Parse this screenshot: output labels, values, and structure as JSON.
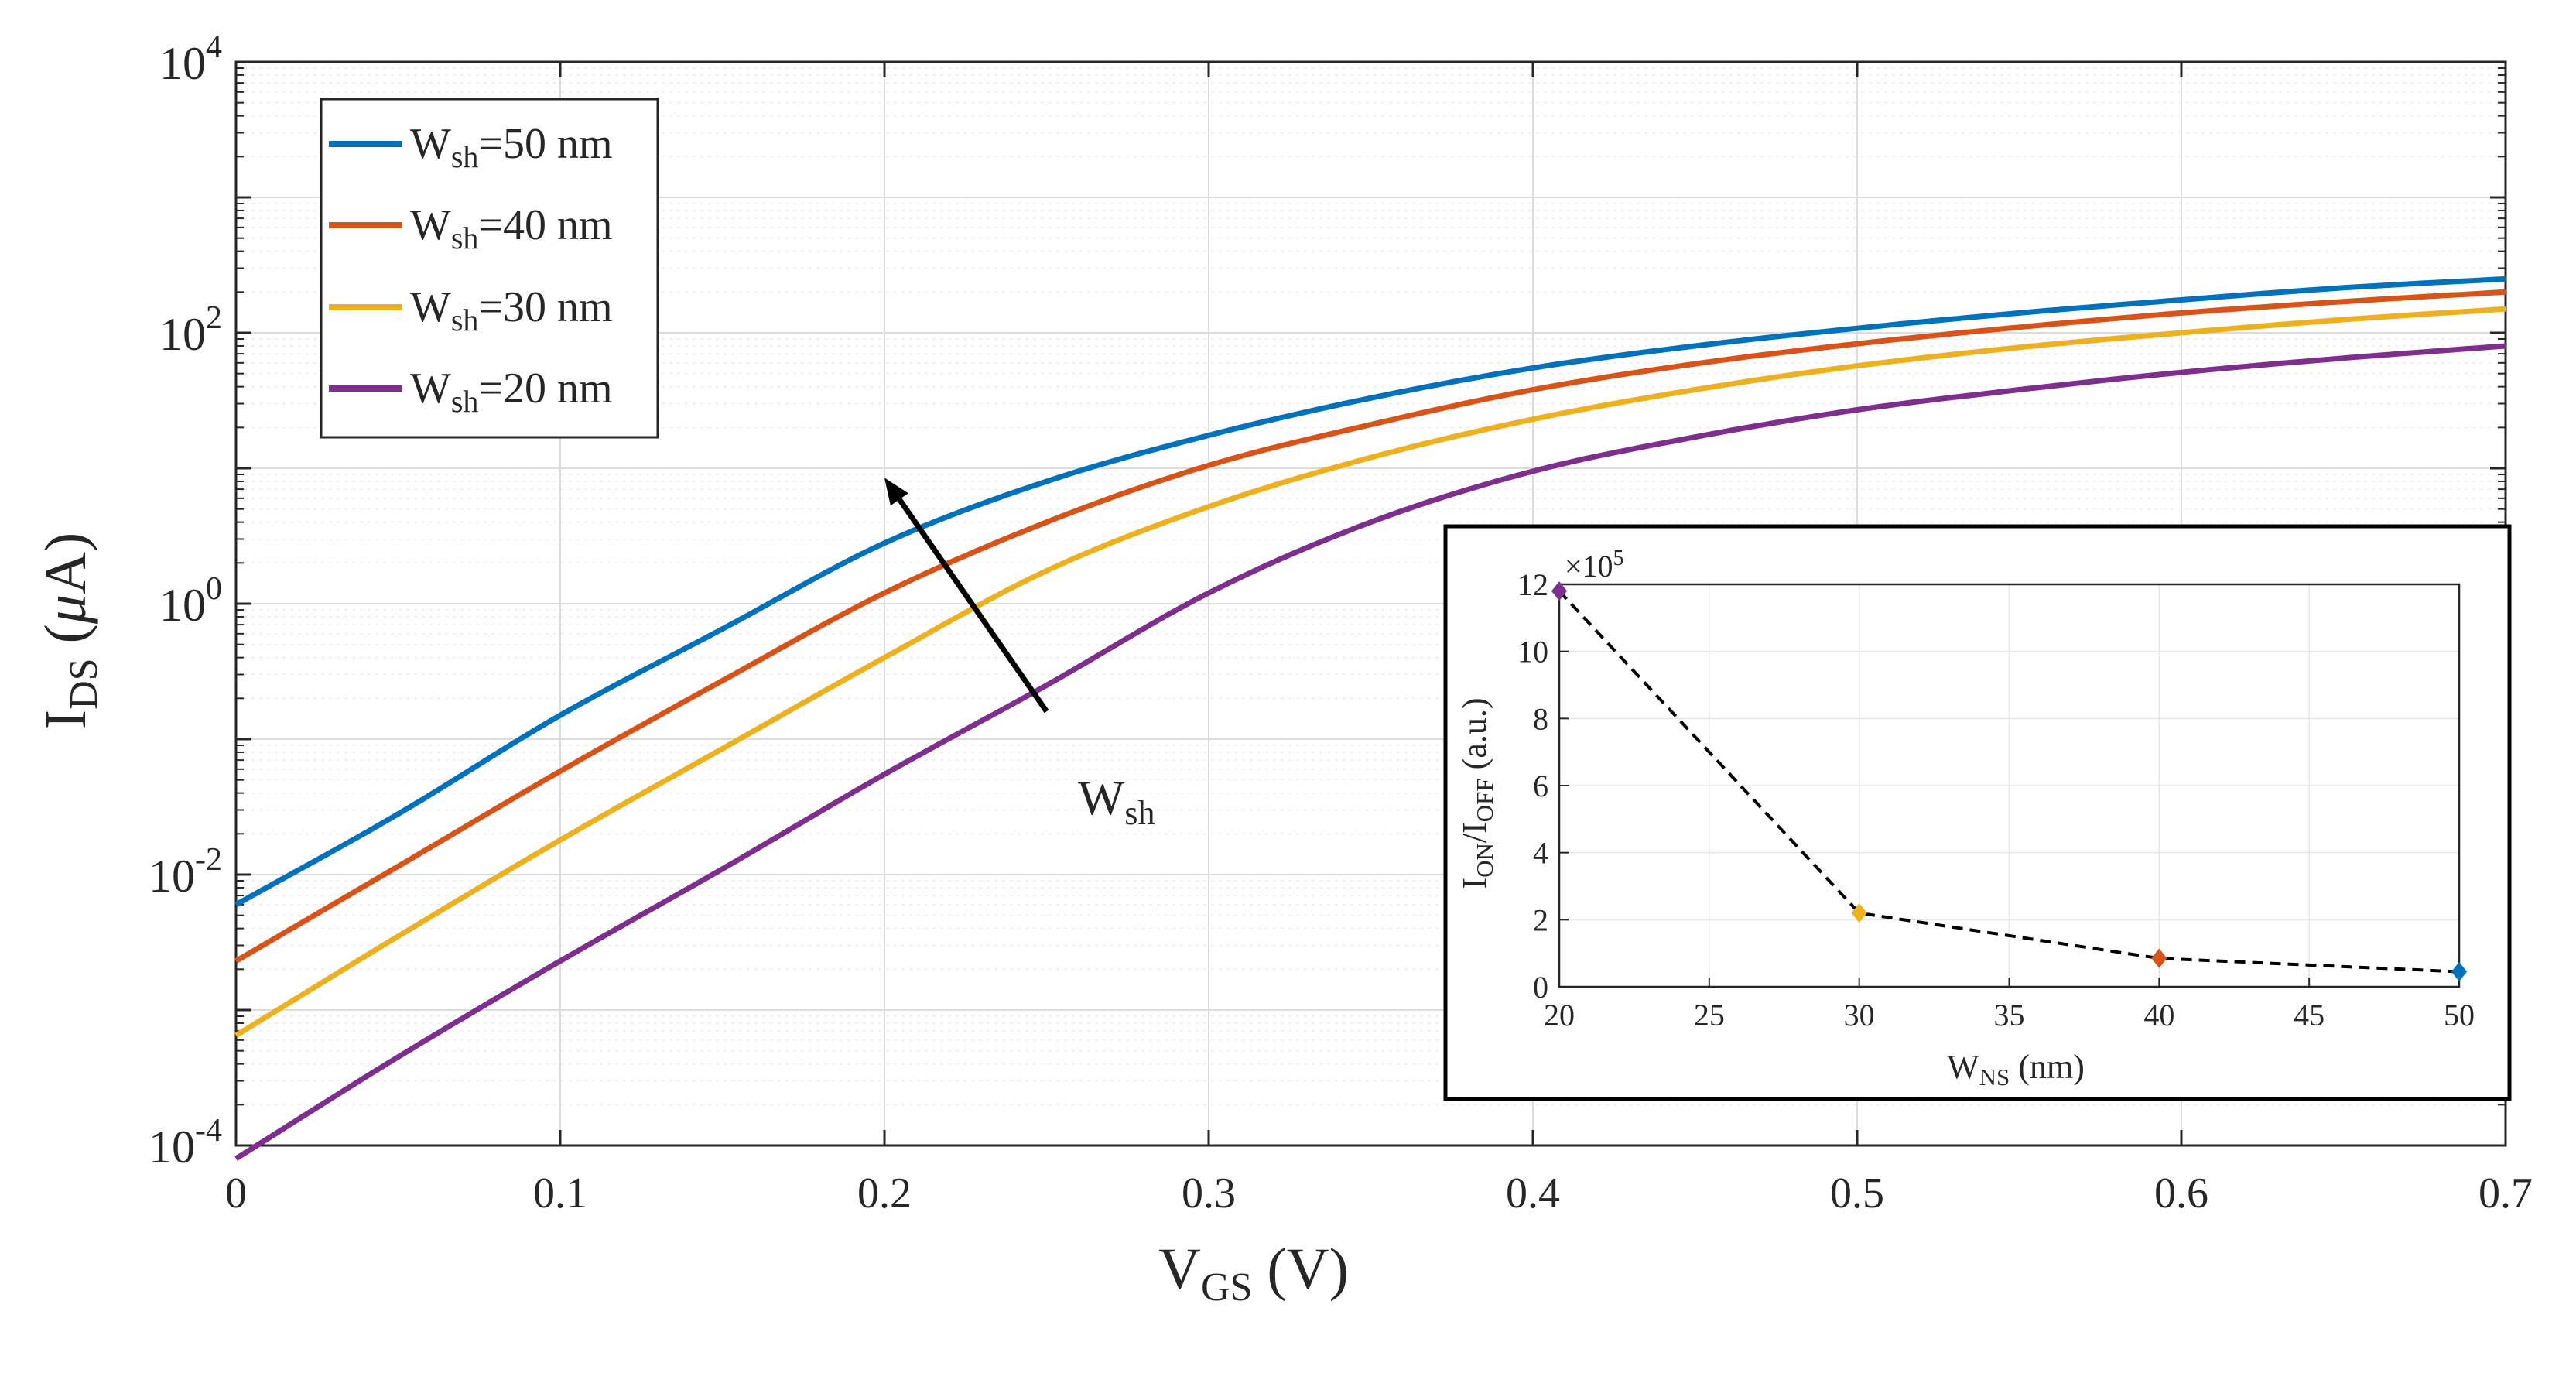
{
  "chart_data": [
    {
      "type": "line",
      "title": "",
      "xlabel": "V",
      "xlabel_sub": "GS",
      "xlabel_unit": " (V)",
      "ylabel": "I",
      "ylabel_sub": "DS",
      "ylabel_unit_pre": " (",
      "ylabel_unit_greek": "μ",
      "ylabel_unit_post": "A)",
      "yscale": "log",
      "xlim": [
        0,
        0.7
      ],
      "ylim_exp": [
        -4,
        4
      ],
      "x_ticks": [
        0,
        0.1,
        0.2,
        0.3,
        0.4,
        0.5,
        0.6,
        0.7
      ],
      "x_tick_labels": [
        "0",
        "0.1",
        "0.2",
        "0.3",
        "0.4",
        "0.5",
        "0.6",
        "0.7"
      ],
      "y_tick_exponents": [
        -4,
        -2,
        0,
        2,
        4
      ],
      "y_tick_labels": [
        "-4",
        "-2",
        "0",
        "2",
        "4"
      ],
      "y_tick_base": "10",
      "grid": true,
      "legend_position": "top-left",
      "x": [
        0,
        0.05,
        0.1,
        0.15,
        0.2,
        0.25,
        0.3,
        0.35,
        0.4,
        0.45,
        0.5,
        0.55,
        0.6,
        0.65,
        0.7
      ],
      "series": [
        {
          "name": "W=50 nm",
          "label_main": "W",
          "label_sub": "sh",
          "label_rest": "=50 nm",
          "color": "#0072BD",
          "values": [
            0.006,
            0.028,
            0.15,
            0.65,
            2.8,
            8.0,
            17.5,
            33,
            55,
            80,
            108,
            140,
            175,
            215,
            250
          ]
        },
        {
          "name": "W=40 nm",
          "label_main": "W",
          "label_sub": "sh",
          "label_rest": "=40 nm",
          "color": "#D95319",
          "values": [
            0.0023,
            0.0115,
            0.058,
            0.27,
            1.2,
            4.0,
            10.5,
            21,
            38,
            59,
            83,
            110,
            140,
            170,
            200
          ]
        },
        {
          "name": "W=30 nm",
          "label_main": "W",
          "label_sub": "sh",
          "label_rest": "=30 nm",
          "color": "#EDB120",
          "values": [
            0.00065,
            0.0035,
            0.018,
            0.085,
            0.4,
            1.75,
            5.2,
            12,
            23,
            38,
            57,
            78,
            100,
            125,
            150
          ]
        },
        {
          "name": "W=20 nm",
          "label_main": "W",
          "label_sub": "sh",
          "label_rest": "=20 nm",
          "color": "#7E2F8E",
          "values": [
            8e-05,
            0.00045,
            0.0023,
            0.011,
            0.055,
            0.25,
            1.2,
            4.0,
            9.5,
            17,
            27,
            38,
            51,
            65,
            80
          ]
        }
      ],
      "annotation": {
        "text_main": "W",
        "text_sub": "sh",
        "from": [
          0.25,
          0.16
        ],
        "to": [
          0.2,
          8.5
        ]
      }
    },
    {
      "type": "line",
      "title": "",
      "xlabel": "W",
      "xlabel_sub": "NS",
      "xlabel_unit": " (nm)",
      "ylabel": "I",
      "ylabel_sub": "ON",
      "ylabel_mid": "/I",
      "ylabel_sub2": "OFF",
      "ylabel_unit": " (a.u.)",
      "y_multiplier_base": "×10",
      "y_multiplier_exp": "5",
      "xlim": [
        20,
        50
      ],
      "ylim": [
        0,
        12
      ],
      "x_ticks": [
        20,
        25,
        30,
        35,
        40,
        45,
        50
      ],
      "x_tick_labels": [
        "20",
        "25",
        "30",
        "35",
        "40",
        "45",
        "50"
      ],
      "y_ticks": [
        0,
        2,
        4,
        6,
        8,
        10,
        12
      ],
      "y_tick_labels": [
        "0",
        "2",
        "4",
        "6",
        "8",
        "10",
        "12"
      ],
      "grid": true,
      "line_style": "dashed",
      "points": [
        {
          "x": 20,
          "y": 11.8,
          "color": "#7E2F8E"
        },
        {
          "x": 30,
          "y": 2.2,
          "color": "#EDB120"
        },
        {
          "x": 40,
          "y": 0.85,
          "color": "#D95319"
        },
        {
          "x": 50,
          "y": 0.45,
          "color": "#0072BD"
        }
      ]
    }
  ]
}
